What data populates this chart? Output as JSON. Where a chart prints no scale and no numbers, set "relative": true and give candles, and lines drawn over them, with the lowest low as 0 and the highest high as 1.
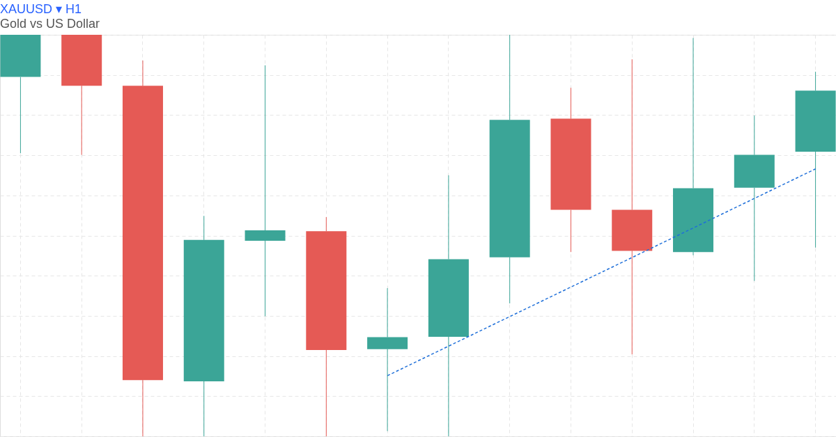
{
  "chart_data": {
    "type": "candlestick",
    "title": "XAUUSD ▾ H1",
    "subtitle": "Gold vs US Dollar",
    "relative": true,
    "grid": true,
    "categories": [
      null,
      null,
      null,
      null,
      null,
      null,
      null,
      null,
      null,
      null,
      null,
      null,
      null,
      null
    ],
    "ohlc": [
      [
        0.895,
        1,
        0.705,
        1
      ],
      [
        1,
        1,
        0.701,
        0.873
      ],
      [
        0.873,
        0.936,
        0,
        0.14
      ],
      [
        0.137,
        0.549,
        0,
        0.489
      ],
      [
        0.487,
        0.924,
        0.299,
        0.513
      ],
      [
        0.511,
        0.546,
        0,
        0.215
      ],
      [
        0.217,
        0.369,
        0.013,
        0.247
      ],
      [
        0.248,
        0.65,
        0,
        0.441
      ],
      [
        0.446,
        1,
        0.331,
        0.788
      ],
      [
        0.791,
        0.868,
        0.459,
        0.564
      ],
      [
        0.564,
        0.939,
        0.204,
        0.462
      ],
      [
        0.459,
        0.992,
        0.451,
        0.618
      ],
      [
        0.619,
        0.799,
        0.387,
        0.701
      ],
      [
        0.709,
        0.908,
        0.47,
        0.861
      ]
    ],
    "colors": [
      "#3ba597",
      "#e55a55",
      "#e55a55",
      "#3ba597",
      "#3ba597",
      "#e55a55",
      "#3ba597",
      "#3ba597",
      "#3ba597",
      "#e55a55",
      "#e55a55",
      "#3ba597",
      "#3ba597",
      "#3ba597"
    ],
    "series": [
      {
        "type": "line",
        "color": "#1e6fd9",
        "line_style": "dashed",
        "values": [
          null,
          null,
          null,
          null,
          null,
          null,
          0.151,
          null,
          null,
          null,
          null,
          null,
          null,
          0.666
        ]
      }
    ]
  }
}
